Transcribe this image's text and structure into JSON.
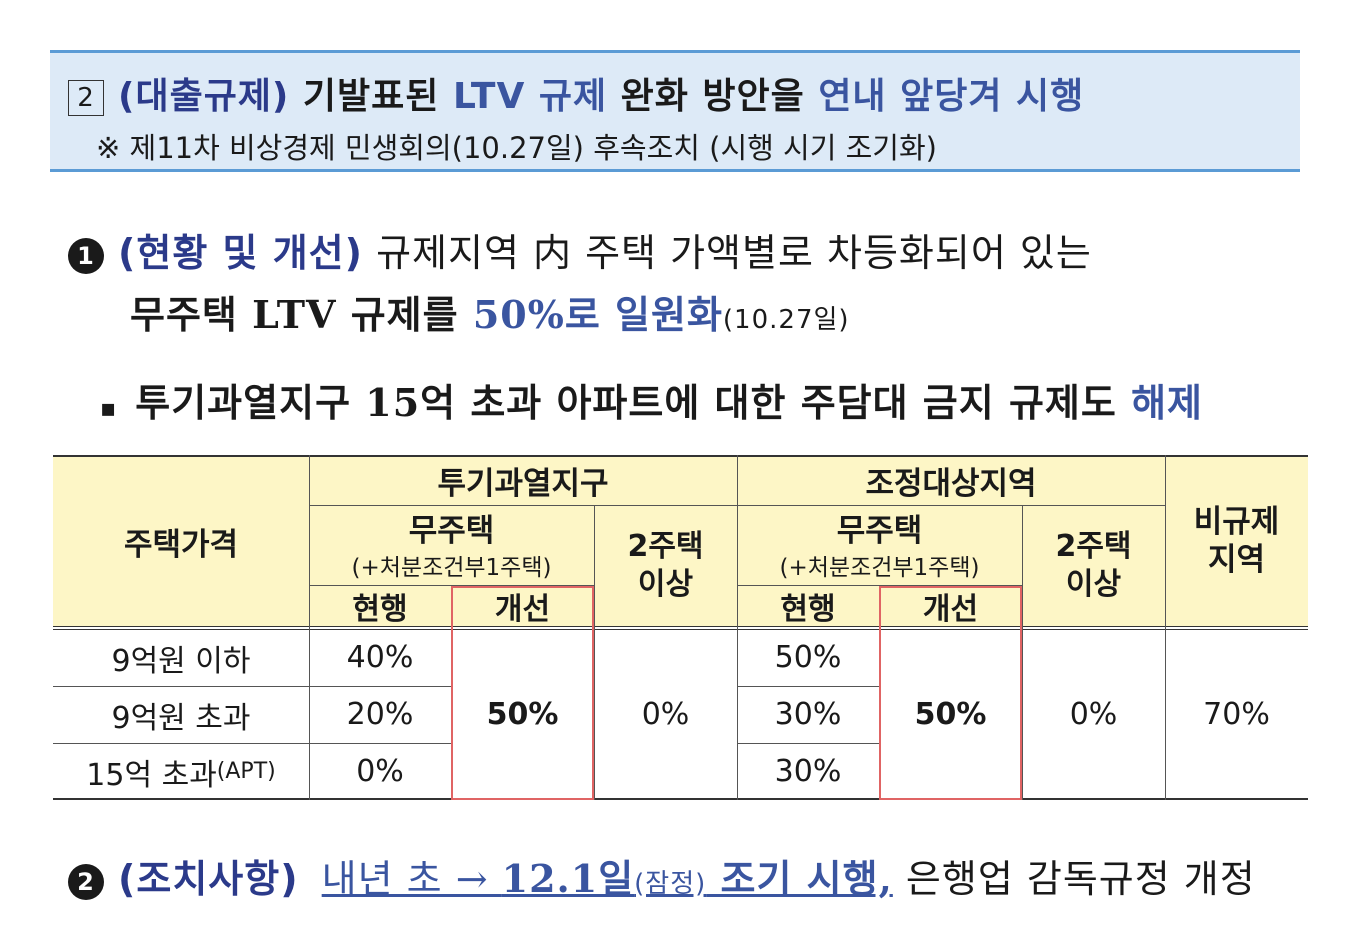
{
  "header": {
    "number": "2",
    "title_parts": [
      "(대출규제)",
      " 기발표된 ",
      "LTV 규제",
      " 완화 방안을 ",
      "연내 앞당겨 시행"
    ],
    "subtitle": "※ 제11차 비상경제 민생회의(10.27일) 후속조치 (시행 시기 조기화)"
  },
  "item1": {
    "bullet": "1",
    "line1_parts": [
      "(현황 및 개선)",
      " 규제지역 内 주택 가액별로 차등화되어 있는"
    ],
    "line2_parts": [
      "무주택 LTV 규제를 ",
      "50%로 일원화",
      "(10.27일)"
    ]
  },
  "sub_bullet": {
    "marker": "▪",
    "parts": [
      "투기과열지구 15억 초과 아파트에 대한 주담대 금지 규제도 ",
      "해제"
    ]
  },
  "table": {
    "col_header_price": "주택가격",
    "group1": "투기과열지구",
    "group2": "조정대상지역",
    "no_house": "무주택",
    "no_house_note": "(+처분조건부1주택)",
    "current": "현행",
    "improved": "개선",
    "two_plus": [
      "2주택",
      "이상"
    ],
    "non_regulated": [
      "비규제",
      "지역"
    ],
    "rows": [
      {
        "price": "9억원 이하",
        "g1_current": "40%",
        "g2_current": "50%"
      },
      {
        "price": "9억원 초과",
        "g1_current": "20%",
        "g2_current": "30%"
      },
      {
        "price": "15억 초과",
        "price_suffix": "(APT)",
        "g1_current": "0%",
        "g2_current": "30%"
      }
    ],
    "g1_improved": "50%",
    "g1_two_plus": "0%",
    "g2_improved": "50%",
    "g2_two_plus": "0%",
    "non_regulated_value": "70%"
  },
  "item2": {
    "bullet": "2",
    "label": "(조치사항)",
    "underlined_parts": [
      "내년 초 → ",
      "12.1일",
      "(잠정)",
      " 조기 시행,"
    ],
    "tail": " 은행업 감독규정 개정"
  }
}
